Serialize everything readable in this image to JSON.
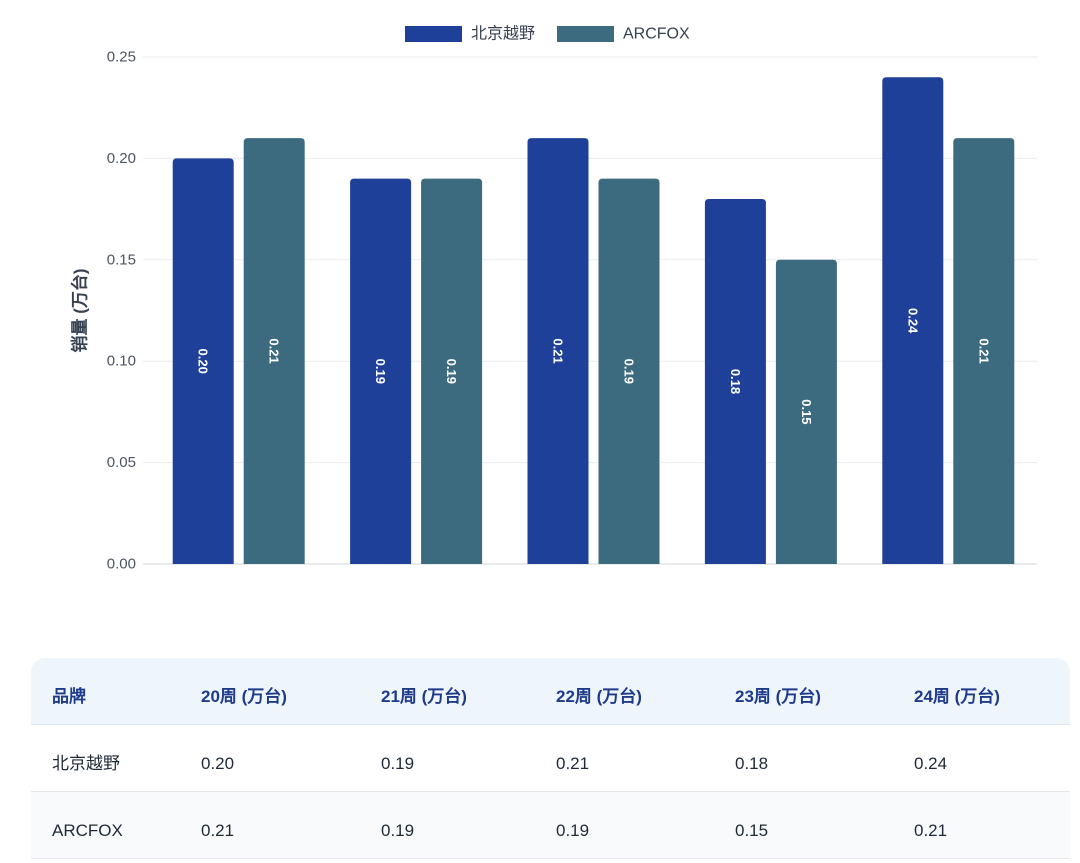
{
  "chart_data": {
    "type": "bar",
    "ylabel": "销量 (万台)",
    "ylim": [
      0,
      0.25
    ],
    "y_ticks": [
      0,
      0.05,
      0.1,
      0.15,
      0.2,
      0.25
    ],
    "y_tick_labels": [
      "0.00",
      "0.05",
      "0.10",
      "0.15",
      "0.20",
      "0.25"
    ],
    "grid": true,
    "legend_position": "top",
    "series": [
      {
        "name": "北京越野",
        "color": "#1e4099",
        "values": [
          0.2,
          0.19,
          0.21,
          0.18,
          0.24
        ],
        "data_labels": [
          "0.20",
          "0.19",
          "0.21",
          "0.18",
          "0.24"
        ]
      },
      {
        "name": "ARCFOX",
        "color": "#3c6b80",
        "values": [
          0.21,
          0.19,
          0.19,
          0.15,
          0.21
        ],
        "data_labels": [
          "0.21",
          "0.19",
          "0.19",
          "0.15",
          "0.21"
        ]
      }
    ]
  },
  "table": {
    "headers": [
      "品牌",
      "20周 (万台)",
      "21周 (万台)",
      "22周 (万台)",
      "23周 (万台)",
      "24周 (万台)"
    ]
  }
}
